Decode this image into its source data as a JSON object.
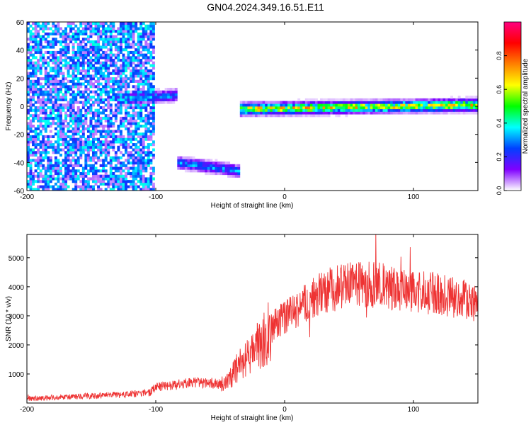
{
  "title": "GN04.2024.349.16.51.E11",
  "chart_data": [
    {
      "type": "heatmap",
      "xlabel": "Height of straight line (km)",
      "ylabel": "Frequency (Hz)",
      "xlim": [
        -200,
        150
      ],
      "ylim": [
        -60,
        60
      ],
      "xticks": [
        -200,
        -100,
        0,
        100
      ],
      "xtick_labels": [
        "-200",
        "-100",
        "0",
        "100"
      ],
      "yticks": [
        -60,
        -40,
        -20,
        0,
        20,
        40,
        60
      ],
      "ytick_labels": [
        "-60",
        "-40",
        "-20",
        "0",
        "20",
        "40",
        "60"
      ],
      "colorbar": {
        "label": "Normalized spectral amplitude",
        "range": [
          0,
          1
        ],
        "ticks": [
          0,
          0.2,
          0.4,
          0.6,
          0.8
        ],
        "tick_labels": [
          "0.0",
          "0.2",
          "0.4",
          "0.6",
          "0.8"
        ],
        "colors": [
          "#ffffff",
          "#8000ff",
          "#0040ff",
          "#00ffff",
          "#00ff00",
          "#ffff00",
          "#ff8000",
          "#ff0000",
          "#ff0080"
        ]
      },
      "features": [
        {
          "name": "noise",
          "x_range": [
            -200,
            -100
          ],
          "y_range": [
            -60,
            60
          ],
          "amplitude": 0.15
        },
        {
          "name": "band",
          "x_range": [
            -130,
            -83
          ],
          "frequency": [
            5,
            8
          ],
          "amplitude": 0.3
        },
        {
          "name": "band",
          "x_range": [
            -83,
            -35
          ],
          "frequency": [
            -40,
            -46
          ],
          "amplitude": 0.3
        },
        {
          "name": "band",
          "x_range": [
            -35,
            150
          ],
          "frequency": [
            -2,
            1
          ],
          "amplitude": 0.6
        }
      ]
    },
    {
      "type": "line",
      "xlabel": "Height of straight line (km)",
      "ylabel": "SNR (10 * v/v)",
      "xlim": [
        -200,
        150
      ],
      "ylim": [
        0,
        5800
      ],
      "xticks": [
        -200,
        -100,
        0,
        100
      ],
      "xtick_labels": [
        "-200",
        "-100",
        "0",
        "100"
      ],
      "yticks": [
        1000,
        2000,
        3000,
        4000,
        5000
      ],
      "ytick_labels": [
        "1000",
        "2000",
        "3000",
        "4000",
        "5000"
      ],
      "series": [
        {
          "color": "#ee3333",
          "x": [
            -200,
            -180,
            -160,
            -140,
            -120,
            -105,
            -100,
            -90,
            -80,
            -70,
            -60,
            -50,
            -45,
            -40,
            -35,
            -30,
            -25,
            -20,
            -15,
            -10,
            -5,
            0,
            5,
            10,
            15,
            20,
            25,
            30,
            40,
            50,
            60,
            70,
            80,
            90,
            95,
            100,
            110,
            120,
            130,
            140,
            150
          ],
          "y": [
            150,
            180,
            220,
            260,
            300,
            350,
            550,
            600,
            650,
            700,
            700,
            650,
            750,
            1000,
            1300,
            1500,
            1700,
            2000,
            2300,
            2600,
            2800,
            2900,
            3100,
            3200,
            3400,
            3550,
            3700,
            3850,
            3950,
            4050,
            4100,
            4050,
            4000,
            3950,
            3850,
            3850,
            3800,
            3750,
            3650,
            3550,
            3450
          ]
        }
      ]
    }
  ]
}
